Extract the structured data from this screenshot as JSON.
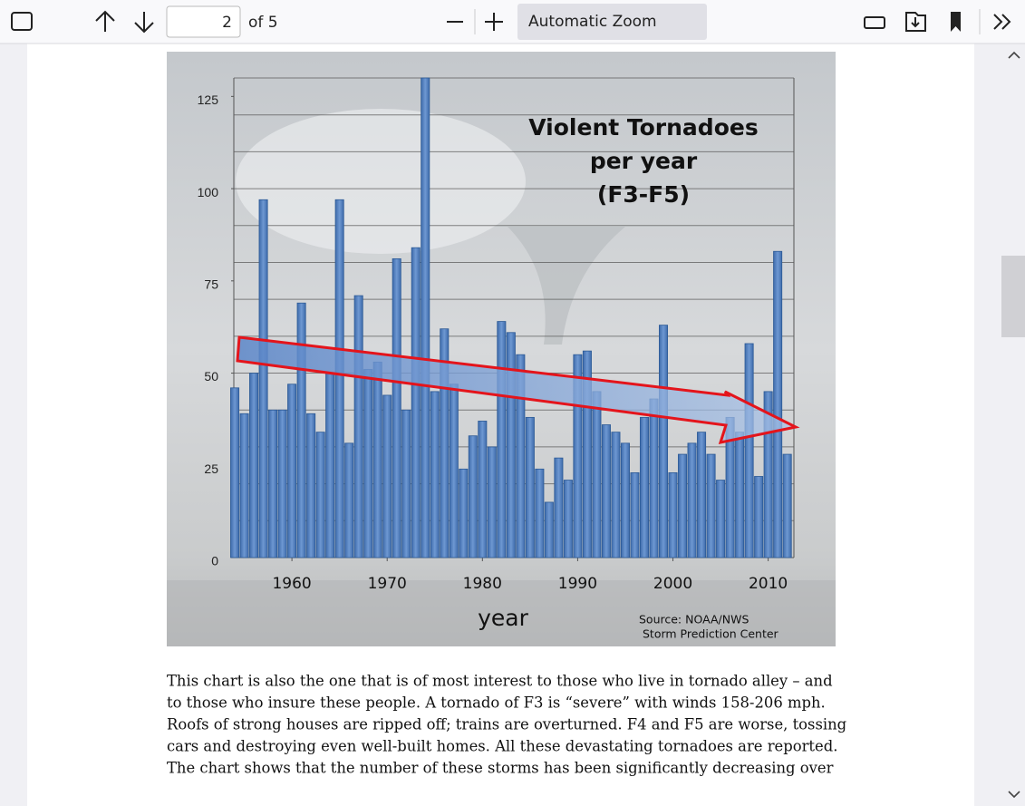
{
  "toolbar": {
    "page": "2",
    "page_count": "of 5",
    "zoom": "Automatic Zoom"
  },
  "chart_data": {
    "type": "bar",
    "title_lines": [
      "Violent Tornadoes",
      "per year",
      "(F3-F5)"
    ],
    "xlabel": "year",
    "source_lines": [
      "Source: NOAA/NWS",
      "Storm Prediction Center"
    ],
    "color": "#4f7fc0",
    "x": [
      1954,
      1955,
      1956,
      1957,
      1958,
      1959,
      1960,
      1961,
      1962,
      1963,
      1964,
      1965,
      1966,
      1967,
      1968,
      1969,
      1970,
      1971,
      1972,
      1973,
      1974,
      1975,
      1976,
      1977,
      1978,
      1979,
      1980,
      1981,
      1982,
      1983,
      1984,
      1985,
      1986,
      1987,
      1988,
      1989,
      1990,
      1991,
      1992,
      1993,
      1994,
      1995,
      1996,
      1997,
      1998,
      1999,
      2000,
      2001,
      2002,
      2003,
      2004,
      2005,
      2006,
      2007,
      2008,
      2009,
      2010,
      2011,
      2012
    ],
    "values": [
      46,
      39,
      50,
      97,
      40,
      40,
      47,
      69,
      39,
      34,
      50,
      97,
      31,
      71,
      51,
      53,
      44,
      81,
      40,
      84,
      130,
      45,
      62,
      47,
      24,
      33,
      37,
      30,
      64,
      61,
      55,
      38,
      24,
      15,
      27,
      21,
      55,
      56,
      45,
      36,
      34,
      31,
      23,
      38,
      43,
      63,
      23,
      28,
      31,
      34,
      28,
      21,
      38,
      34,
      58,
      22,
      45,
      83,
      28
    ],
    "xlim": [
      1953.9,
      2012.7
    ],
    "xticks": [
      1960,
      1970,
      1980,
      1990,
      2000,
      2010
    ],
    "ylim": [
      0,
      130
    ],
    "yticks": [
      0,
      25,
      50,
      75,
      100,
      125
    ],
    "grid_lines": [
      10,
      20,
      30,
      40,
      50,
      60,
      70,
      80,
      90,
      100,
      110,
      120,
      130
    ]
  },
  "paragraph": [
    "This chart is also the one that is of most interest to those who live in tornado alley – and",
    "to those who insure these people.  A tornado of F3 is “severe” with winds 158-206 mph.",
    "Roofs of strong houses are ripped off; trains are overturned.  F4 and F5 are worse, tossing",
    "cars and destroying even well-built homes. All these devastating tornadoes are reported.",
    "The chart shows that the number of these storms has been significantly decreasing over"
  ]
}
